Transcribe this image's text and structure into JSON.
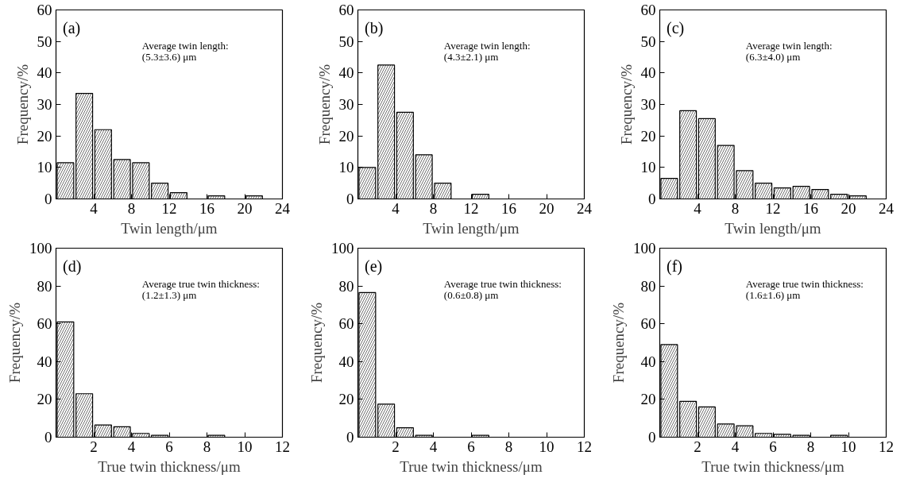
{
  "chart_data": [
    {
      "type": "histogram",
      "xlabel": "Twin length/μm",
      "ylabel": "Frequency/%",
      "annotations": [
        "(a)",
        "Average twin length:",
        "(5.3±3.6) μm"
      ],
      "bins": [
        0,
        2,
        4,
        6,
        8,
        10,
        12,
        14,
        16,
        18,
        20,
        22,
        24
      ],
      "values": [
        11.5,
        33.5,
        22,
        12.5,
        11.5,
        5,
        2,
        0,
        1,
        0,
        1,
        0
      ],
      "xlim": [
        0,
        24
      ],
      "ylim": [
        0,
        60
      ],
      "xticks": [
        4,
        8,
        12,
        16,
        20,
        24
      ],
      "yticks": [
        0,
        10,
        20,
        30,
        40,
        50,
        60
      ]
    },
    {
      "type": "histogram",
      "xlabel": "Twin length/μm",
      "ylabel": "Frequency/%",
      "annotations": [
        "(b)",
        "Average twin length:",
        "(4.3±2.1) μm"
      ],
      "bins": [
        0,
        2,
        4,
        6,
        8,
        10,
        12,
        14,
        16,
        18,
        20,
        22,
        24
      ],
      "values": [
        10,
        42.5,
        27.5,
        14,
        5,
        0,
        1.5,
        0,
        0,
        0,
        0,
        0
      ],
      "xlim": [
        0,
        24
      ],
      "ylim": [
        0,
        60
      ],
      "xticks": [
        4,
        8,
        12,
        16,
        20,
        24
      ],
      "yticks": [
        0,
        10,
        20,
        30,
        40,
        50,
        60
      ]
    },
    {
      "type": "histogram",
      "xlabel": "Twin length/μm",
      "ylabel": "Frequency/%",
      "annotations": [
        "(c)",
        "Average twin length:",
        "(6.3±4.0) μm"
      ],
      "bins": [
        0,
        2,
        4,
        6,
        8,
        10,
        12,
        14,
        16,
        18,
        20,
        22,
        24
      ],
      "values": [
        6.5,
        28,
        25.5,
        17,
        9,
        5,
        3.5,
        4,
        3,
        1.5,
        1,
        0
      ],
      "xlim": [
        0,
        24
      ],
      "ylim": [
        0,
        60
      ],
      "xticks": [
        4,
        8,
        12,
        16,
        20,
        24
      ],
      "yticks": [
        0,
        10,
        20,
        30,
        40,
        50,
        60
      ]
    },
    {
      "type": "histogram",
      "xlabel": "True twin thickness/μm",
      "ylabel": "Frequency/%",
      "annotations": [
        "(d)",
        "Average true twin thickness:",
        "(1.2±1.3) μm"
      ],
      "bins": [
        0,
        1,
        2,
        3,
        4,
        5,
        6,
        7,
        8,
        9,
        10,
        11,
        12
      ],
      "values": [
        61,
        23,
        6.5,
        5.5,
        2,
        1,
        0,
        0,
        1,
        0,
        0,
        0
      ],
      "xlim": [
        0,
        12
      ],
      "ylim": [
        0,
        100
      ],
      "xticks": [
        2,
        4,
        6,
        8,
        10,
        12
      ],
      "yticks": [
        0,
        20,
        40,
        60,
        80,
        100
      ]
    },
    {
      "type": "histogram",
      "xlabel": "True twin thickness/μm",
      "ylabel": "Frequency/%",
      "annotations": [
        "(e)",
        "Average true twin thickness:",
        "(0.6±0.8) μm"
      ],
      "bins": [
        0,
        1,
        2,
        3,
        4,
        5,
        6,
        7,
        8,
        9,
        10,
        11,
        12
      ],
      "values": [
        76.5,
        17.5,
        5,
        1,
        0,
        0,
        1,
        0,
        0,
        0,
        0,
        0
      ],
      "xlim": [
        0,
        12
      ],
      "ylim": [
        0,
        100
      ],
      "xticks": [
        2,
        4,
        6,
        8,
        10,
        12
      ],
      "yticks": [
        0,
        20,
        40,
        60,
        80,
        100
      ]
    },
    {
      "type": "histogram",
      "xlabel": "True twin thickness/μm",
      "ylabel": "Frequency/%",
      "annotations": [
        "(f)",
        "Average true twin thickness:",
        "(1.6±1.6) μm"
      ],
      "bins": [
        0,
        1,
        2,
        3,
        4,
        5,
        6,
        7,
        8,
        9,
        10,
        11,
        12
      ],
      "values": [
        49,
        19,
        16,
        7,
        6,
        2,
        1.5,
        1,
        0,
        1,
        0,
        0
      ],
      "xlim": [
        0,
        12
      ],
      "ylim": [
        0,
        100
      ],
      "xticks": [
        2,
        4,
        6,
        8,
        10,
        12
      ],
      "yticks": [
        0,
        20,
        40,
        60,
        80,
        100
      ]
    }
  ]
}
